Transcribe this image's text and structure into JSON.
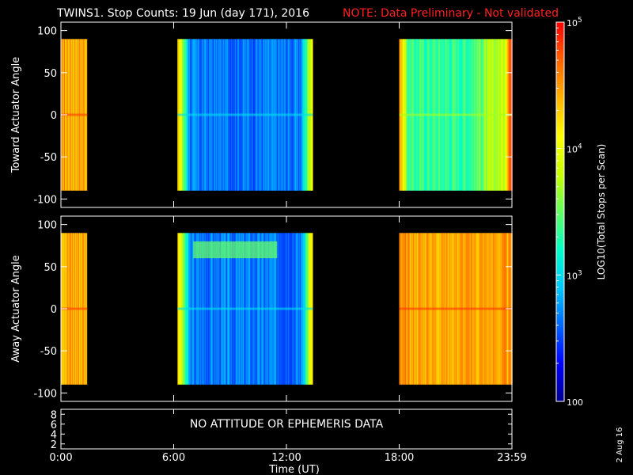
{
  "title": "TWINS1. Stop Counts: 19 Jun (day 171), 2016",
  "note": "NOTE: Data Preliminary - Not validated",
  "date_stamp": "2 Aug 16",
  "chart_data": [
    {
      "type": "heatmap",
      "ylabel": "Toward Actuator Angle",
      "ylim": [
        -110,
        110
      ],
      "yticks": [
        100,
        50,
        0,
        -50,
        -100
      ],
      "xlim": [
        0,
        24
      ],
      "angle_range": [
        -90,
        90
      ],
      "segments": [
        {
          "start": 0.0,
          "end": 1.4,
          "level": "high"
        },
        {
          "start": 6.2,
          "end": 13.4,
          "level": "low"
        },
        {
          "start": 18.0,
          "end": 24.0,
          "level": "mid"
        }
      ]
    },
    {
      "type": "heatmap",
      "ylabel": "Away Actuator Angle",
      "ylim": [
        -110,
        110
      ],
      "yticks": [
        100,
        50,
        0,
        -50,
        -100
      ],
      "xlim": [
        0,
        24
      ],
      "angle_range": [
        -90,
        90
      ],
      "segments": [
        {
          "start": 0.0,
          "end": 1.4,
          "level": "high"
        },
        {
          "start": 6.2,
          "end": 13.4,
          "level": "low"
        },
        {
          "start": 18.0,
          "end": 24.0,
          "level": "high"
        }
      ]
    },
    {
      "type": "line",
      "yticks": [
        8,
        6,
        4,
        2
      ],
      "ylim": [
        1,
        9
      ],
      "message": "NO ATTITUDE OR EPHEMERIS DATA"
    }
  ],
  "x_axis": {
    "ticks": [
      0,
      6,
      12,
      18,
      24
    ],
    "tick_labels": [
      "0:00",
      "6:00",
      "12:00",
      "18:00",
      "23:59"
    ],
    "label": "Time (UT)"
  },
  "colorbar": {
    "label": "LOG10(Total Stops per Scan)",
    "tick_labels": [
      "10^5",
      "10^4",
      "10^3",
      "100"
    ],
    "range": [
      100,
      100000
    ],
    "scale": "log",
    "colors": [
      "#00008c",
      "#0000ff",
      "#0064ff",
      "#00c8ff",
      "#00ffc8",
      "#64ff64",
      "#c8ff00",
      "#ffff00",
      "#ffb400",
      "#ff6400",
      "#ff0000"
    ]
  },
  "colors": {
    "background": "#000000",
    "note": "#ff2020",
    "foreground": "#ffffff"
  }
}
